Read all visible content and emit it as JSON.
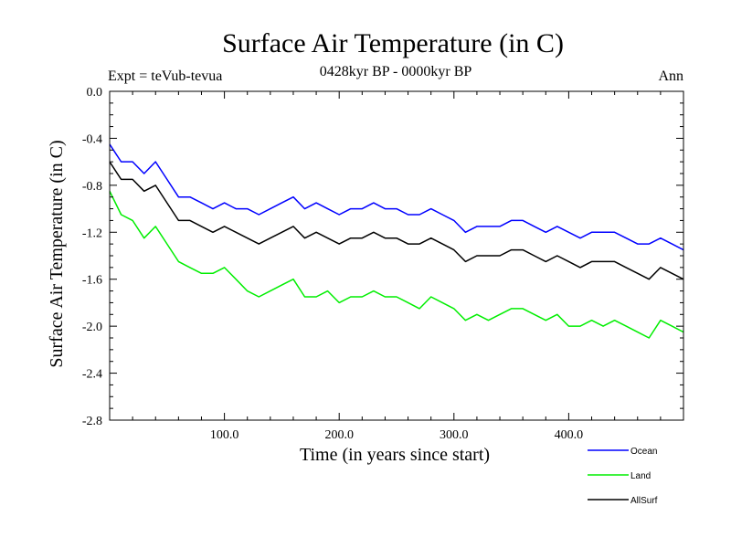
{
  "chart_data": {
    "type": "line",
    "title": "Surface Air Temperature (in C)",
    "subtitle": "0428kyr BP - 0000kyr BP",
    "experiment_label": "Expt = teVub-tevua",
    "season_label": "Ann",
    "xlabel": "Time (in years since start)",
    "ylabel": "Surface Air Temperature (in C)",
    "xlim": [
      0,
      500
    ],
    "ylim": [
      -2.8,
      0.0
    ],
    "x_ticks": [
      100,
      200,
      300,
      400
    ],
    "x_tick_labels": [
      "100.0",
      "200.0",
      "300.0",
      "400.0"
    ],
    "y_ticks": [
      0.0,
      -0.4,
      -0.8,
      -1.2,
      -1.6,
      -2.0,
      -2.4,
      -2.8
    ],
    "y_tick_labels": [
      "0.0",
      "-0.4",
      "-0.8",
      "-1.2",
      "-1.6",
      "-2.0",
      "-2.4",
      "-2.8"
    ],
    "grid": false,
    "legend_position": "bottom-right, below plot",
    "series": [
      {
        "name": "Ocean",
        "color": "#0000ff",
        "x": [
          0,
          10,
          20,
          30,
          40,
          50,
          60,
          70,
          80,
          90,
          100,
          110,
          120,
          130,
          140,
          150,
          160,
          170,
          180,
          190,
          200,
          210,
          220,
          230,
          240,
          250,
          260,
          270,
          280,
          290,
          300,
          310,
          320,
          330,
          340,
          350,
          360,
          370,
          380,
          390,
          400,
          410,
          420,
          430,
          440,
          450,
          460,
          470,
          480,
          490,
          500
        ],
        "values": [
          -0.45,
          -0.6,
          -0.6,
          -0.7,
          -0.6,
          -0.75,
          -0.9,
          -0.9,
          -0.95,
          -1.0,
          -0.95,
          -1.0,
          -1.0,
          -1.05,
          -1.0,
          -0.95,
          -0.9,
          -1.0,
          -0.95,
          -1.0,
          -1.05,
          -1.0,
          -1.0,
          -0.95,
          -1.0,
          -1.0,
          -1.05,
          -1.05,
          -1.0,
          -1.05,
          -1.1,
          -1.2,
          -1.15,
          -1.15,
          -1.15,
          -1.1,
          -1.1,
          -1.15,
          -1.2,
          -1.15,
          -1.2,
          -1.25,
          -1.2,
          -1.2,
          -1.2,
          -1.25,
          -1.3,
          -1.3,
          -1.25,
          -1.3,
          -1.35
        ]
      },
      {
        "name": "Land",
        "color": "#00ee00",
        "x": [
          0,
          10,
          20,
          30,
          40,
          50,
          60,
          70,
          80,
          90,
          100,
          110,
          120,
          130,
          140,
          150,
          160,
          170,
          180,
          190,
          200,
          210,
          220,
          230,
          240,
          250,
          260,
          270,
          280,
          290,
          300,
          310,
          320,
          330,
          340,
          350,
          360,
          370,
          380,
          390,
          400,
          410,
          420,
          430,
          440,
          450,
          460,
          470,
          480,
          490,
          500
        ],
        "values": [
          -0.85,
          -1.05,
          -1.1,
          -1.25,
          -1.15,
          -1.3,
          -1.45,
          -1.5,
          -1.55,
          -1.55,
          -1.5,
          -1.6,
          -1.7,
          -1.75,
          -1.7,
          -1.65,
          -1.6,
          -1.75,
          -1.75,
          -1.7,
          -1.8,
          -1.75,
          -1.75,
          -1.7,
          -1.75,
          -1.75,
          -1.8,
          -1.85,
          -1.75,
          -1.8,
          -1.85,
          -1.95,
          -1.9,
          -1.95,
          -1.9,
          -1.85,
          -1.85,
          -1.9,
          -1.95,
          -1.9,
          -2.0,
          -2.0,
          -1.95,
          -2.0,
          -1.95,
          -2.0,
          -2.05,
          -2.1,
          -1.95,
          -2.0,
          -2.05
        ]
      },
      {
        "name": "AllSurf",
        "color": "#000000",
        "x": [
          0,
          10,
          20,
          30,
          40,
          50,
          60,
          70,
          80,
          90,
          100,
          110,
          120,
          130,
          140,
          150,
          160,
          170,
          180,
          190,
          200,
          210,
          220,
          230,
          240,
          250,
          260,
          270,
          280,
          290,
          300,
          310,
          320,
          330,
          340,
          350,
          360,
          370,
          380,
          390,
          400,
          410,
          420,
          430,
          440,
          450,
          460,
          470,
          480,
          490,
          500
        ],
        "values": [
          -0.6,
          -0.75,
          -0.75,
          -0.85,
          -0.8,
          -0.95,
          -1.1,
          -1.1,
          -1.15,
          -1.2,
          -1.15,
          -1.2,
          -1.25,
          -1.3,
          -1.25,
          -1.2,
          -1.15,
          -1.25,
          -1.2,
          -1.25,
          -1.3,
          -1.25,
          -1.25,
          -1.2,
          -1.25,
          -1.25,
          -1.3,
          -1.3,
          -1.25,
          -1.3,
          -1.35,
          -1.45,
          -1.4,
          -1.4,
          -1.4,
          -1.35,
          -1.35,
          -1.4,
          -1.45,
          -1.4,
          -1.45,
          -1.5,
          -1.45,
          -1.45,
          -1.45,
          -1.5,
          -1.55,
          -1.6,
          -1.5,
          -1.55,
          -1.6
        ]
      }
    ]
  }
}
